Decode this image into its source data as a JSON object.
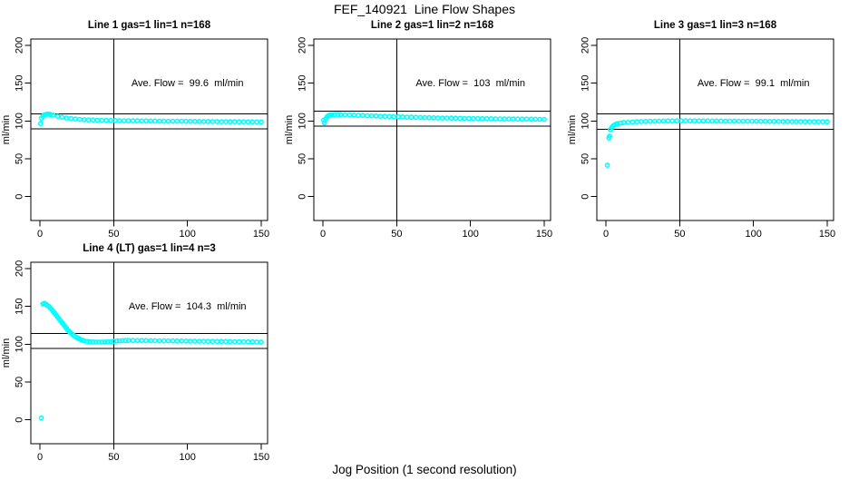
{
  "figure": {
    "title": "FEF_140921  Line Flow Shapes",
    "xlabel": "Jog Position (1 second resolution)"
  },
  "chart_data": [
    {
      "type": "scatter",
      "title": "Line 1 gas=1 lin=1 n=168",
      "ylabel": "ml/min",
      "annotation": "Ave. Flow =  99.6  ml/min",
      "ave_flow": 99.6,
      "n": 168,
      "marker": {
        "shape": "open-circle",
        "color": "#00FFFF"
      },
      "xticks": [
        0,
        50,
        100,
        150
      ],
      "yticks": [
        0,
        50,
        100,
        150,
        200
      ],
      "xlim": [
        -6,
        154
      ],
      "ylim": [
        -32,
        208
      ],
      "vline": 50,
      "hlines": [
        109.6,
        89.6
      ],
      "points": [
        [
          0.5,
          96.5
        ],
        [
          1,
          103.5
        ],
        [
          2,
          106.5
        ],
        [
          3,
          108
        ],
        [
          4,
          108.7
        ],
        [
          5,
          109
        ],
        [
          6,
          108.9
        ],
        [
          7,
          108.5
        ],
        [
          9,
          107.6
        ],
        [
          12,
          106.2
        ],
        [
          15,
          105
        ],
        [
          18,
          104
        ],
        [
          21,
          103.2
        ],
        [
          24,
          102.6
        ],
        [
          27,
          102.1
        ],
        [
          30,
          101.7
        ],
        [
          33,
          101.4
        ],
        [
          36,
          101.2
        ],
        [
          39,
          101
        ],
        [
          42,
          100.8
        ],
        [
          45,
          100.7
        ],
        [
          48,
          100.6
        ],
        [
          51,
          100.5
        ],
        [
          54,
          100.4
        ],
        [
          57,
          100.3
        ],
        [
          60,
          100.2
        ],
        [
          63,
          100.2
        ],
        [
          66,
          100.1
        ],
        [
          69,
          100
        ],
        [
          72,
          100
        ],
        [
          75,
          99.9
        ],
        [
          78,
          99.9
        ],
        [
          81,
          99.8
        ],
        [
          84,
          99.8
        ],
        [
          87,
          99.7
        ],
        [
          90,
          99.7
        ],
        [
          93,
          99.6
        ],
        [
          96,
          99.6
        ],
        [
          99,
          99.5
        ],
        [
          102,
          99.5
        ],
        [
          105,
          99.4
        ],
        [
          108,
          99.4
        ],
        [
          111,
          99.3
        ],
        [
          114,
          99.3
        ],
        [
          117,
          99.2
        ],
        [
          120,
          99.2
        ],
        [
          123,
          99.1
        ],
        [
          126,
          99.1
        ],
        [
          129,
          99
        ],
        [
          132,
          99
        ],
        [
          135,
          98.9
        ],
        [
          138,
          98.9
        ],
        [
          141,
          98.8
        ],
        [
          144,
          98.8
        ],
        [
          147,
          98.7
        ],
        [
          150,
          98.7
        ]
      ]
    },
    {
      "type": "scatter",
      "title": "Line 2 gas=1 lin=2 n=168",
      "ylabel": "ml/min",
      "annotation": "Ave. Flow =  103  ml/min",
      "ave_flow": 103,
      "n": 168,
      "marker": {
        "shape": "open-circle",
        "color": "#00FFFF"
      },
      "xticks": [
        0,
        50,
        100,
        150
      ],
      "yticks": [
        0,
        50,
        100,
        150,
        200
      ],
      "xlim": [
        -6,
        154
      ],
      "ylim": [
        -32,
        208
      ],
      "vline": 50,
      "hlines": [
        113,
        93
      ],
      "points": [
        [
          0.5,
          101
        ],
        [
          1,
          97.5
        ],
        [
          2,
          103
        ],
        [
          3,
          106
        ],
        [
          4,
          107.3
        ],
        [
          5,
          107.8
        ],
        [
          6,
          108.1
        ],
        [
          8,
          108.4
        ],
        [
          10,
          108.5
        ],
        [
          12,
          108.4
        ],
        [
          15,
          108.2
        ],
        [
          18,
          108
        ],
        [
          21,
          107.8
        ],
        [
          24,
          107.5
        ],
        [
          27,
          107.3
        ],
        [
          30,
          107
        ],
        [
          33,
          106.8
        ],
        [
          36,
          106.6
        ],
        [
          39,
          106.3
        ],
        [
          42,
          106.1
        ],
        [
          45,
          105.9
        ],
        [
          48,
          105.7
        ],
        [
          51,
          105.5
        ],
        [
          54,
          105.3
        ],
        [
          57,
          105.1
        ],
        [
          60,
          104.9
        ],
        [
          63,
          104.8
        ],
        [
          66,
          104.6
        ],
        [
          69,
          104.5
        ],
        [
          72,
          104.3
        ],
        [
          75,
          104.2
        ],
        [
          78,
          104
        ],
        [
          81,
          103.9
        ],
        [
          84,
          103.8
        ],
        [
          87,
          103.7
        ],
        [
          90,
          103.6
        ],
        [
          93,
          103.5
        ],
        [
          96,
          103.4
        ],
        [
          99,
          103.3
        ],
        [
          102,
          103.2
        ],
        [
          105,
          103.1
        ],
        [
          108,
          103
        ],
        [
          111,
          103
        ],
        [
          114,
          102.9
        ],
        [
          117,
          102.8
        ],
        [
          120,
          102.7
        ],
        [
          123,
          102.7
        ],
        [
          126,
          102.6
        ],
        [
          129,
          102.5
        ],
        [
          132,
          102.5
        ],
        [
          135,
          102.4
        ],
        [
          138,
          102.4
        ],
        [
          141,
          102.3
        ],
        [
          144,
          102.3
        ],
        [
          147,
          102.2
        ],
        [
          150,
          102.1
        ]
      ]
    },
    {
      "type": "scatter",
      "title": "Line 3 gas=1 lin=3 n=168",
      "ylabel": "ml/min",
      "annotation": "Ave. Flow =  99.1  ml/min",
      "ave_flow": 99.1,
      "n": 168,
      "marker": {
        "shape": "open-circle",
        "color": "#00FFFF"
      },
      "xticks": [
        0,
        50,
        100,
        150
      ],
      "yticks": [
        0,
        50,
        100,
        150,
        200
      ],
      "xlim": [
        -6,
        154
      ],
      "ylim": [
        -32,
        208
      ],
      "vline": 50,
      "hlines": [
        109.1,
        89.1
      ],
      "points": [
        [
          1,
          41.5
        ],
        [
          2,
          77.5
        ],
        [
          2.5,
          80
        ],
        [
          3,
          88.5
        ],
        [
          4,
          91.5
        ],
        [
          5,
          93.5
        ],
        [
          6,
          95
        ],
        [
          7,
          95.8
        ],
        [
          8,
          96.4
        ],
        [
          10,
          97.2
        ],
        [
          12,
          97.7
        ],
        [
          15,
          98.2
        ],
        [
          18,
          98.6
        ],
        [
          21,
          98.9
        ],
        [
          24,
          99.2
        ],
        [
          27,
          99.4
        ],
        [
          30,
          99.6
        ],
        [
          33,
          99.7
        ],
        [
          36,
          99.8
        ],
        [
          39,
          99.9
        ],
        [
          42,
          100
        ],
        [
          45,
          100
        ],
        [
          48,
          100.1
        ],
        [
          51,
          100.1
        ],
        [
          54,
          100.1
        ],
        [
          57,
          100.1
        ],
        [
          60,
          100
        ],
        [
          63,
          100
        ],
        [
          66,
          100
        ],
        [
          69,
          100
        ],
        [
          72,
          99.9
        ],
        [
          75,
          99.9
        ],
        [
          78,
          99.9
        ],
        [
          81,
          99.8
        ],
        [
          84,
          99.8
        ],
        [
          87,
          99.8
        ],
        [
          90,
          99.7
        ],
        [
          93,
          99.7
        ],
        [
          96,
          99.6
        ],
        [
          99,
          99.6
        ],
        [
          102,
          99.6
        ],
        [
          105,
          99.5
        ],
        [
          108,
          99.5
        ],
        [
          111,
          99.4
        ],
        [
          114,
          99.4
        ],
        [
          117,
          99.4
        ],
        [
          120,
          99.3
        ],
        [
          123,
          99.3
        ],
        [
          126,
          99.2
        ],
        [
          129,
          99.2
        ],
        [
          132,
          99.2
        ],
        [
          135,
          99.1
        ],
        [
          138,
          99.1
        ],
        [
          141,
          99
        ],
        [
          144,
          99
        ],
        [
          147,
          99
        ],
        [
          150,
          98.9
        ]
      ]
    },
    {
      "type": "scatter",
      "title": "Line 4 (LT) gas=1 lin=4 n=3",
      "ylabel": "ml/min",
      "annotation": "Ave. Flow =  104.3  ml/min",
      "ave_flow": 104.3,
      "n": 3,
      "marker": {
        "shape": "open-circle",
        "color": "#00FFFF"
      },
      "xticks": [
        0,
        50,
        100,
        150
      ],
      "yticks": [
        0,
        50,
        100,
        150,
        200
      ],
      "xlim": [
        -6,
        154
      ],
      "ylim": [
        -32,
        208
      ],
      "vline": 50,
      "hlines": [
        114.3,
        94.3
      ],
      "points": [
        [
          1,
          2.5
        ],
        [
          2,
          153
        ],
        [
          3,
          154
        ],
        [
          4,
          153
        ],
        [
          5,
          151.5
        ],
        [
          6,
          150
        ],
        [
          7,
          148
        ],
        [
          8,
          146
        ],
        [
          9,
          143.5
        ],
        [
          10,
          141
        ],
        [
          11,
          138.5
        ],
        [
          12,
          136
        ],
        [
          13,
          133.5
        ],
        [
          14,
          131
        ],
        [
          15,
          128.5
        ],
        [
          16,
          126
        ],
        [
          17,
          123.5
        ],
        [
          18,
          121
        ],
        [
          19,
          118.5
        ],
        [
          20,
          116.5
        ],
        [
          21,
          114.5
        ],
        [
          22,
          113
        ],
        [
          23,
          111.5
        ],
        [
          24,
          110
        ],
        [
          25,
          108.8
        ],
        [
          26,
          107.7
        ],
        [
          27,
          106.7
        ],
        [
          28,
          105.8
        ],
        [
          29,
          105
        ],
        [
          30,
          104.4
        ],
        [
          32,
          103.6
        ],
        [
          34,
          103.1
        ],
        [
          36,
          102.9
        ],
        [
          38,
          102.8
        ],
        [
          40,
          102.8
        ],
        [
          42,
          102.8
        ],
        [
          44,
          102.9
        ],
        [
          46,
          103.1
        ],
        [
          48,
          103.4
        ],
        [
          50,
          103.8
        ],
        [
          52,
          104.2
        ],
        [
          54,
          104.5
        ],
        [
          56,
          104.7
        ],
        [
          58,
          104.8
        ],
        [
          60,
          104.9
        ],
        [
          63,
          104.9
        ],
        [
          66,
          104.8
        ],
        [
          69,
          104.8
        ],
        [
          72,
          104.7
        ],
        [
          75,
          104.6
        ],
        [
          78,
          104.6
        ],
        [
          81,
          104.5
        ],
        [
          84,
          104.4
        ],
        [
          87,
          104.4
        ],
        [
          90,
          104.3
        ],
        [
          93,
          104.2
        ],
        [
          96,
          104.2
        ],
        [
          99,
          104.1
        ],
        [
          102,
          104
        ],
        [
          105,
          104
        ],
        [
          108,
          103.9
        ],
        [
          111,
          103.8
        ],
        [
          114,
          103.8
        ],
        [
          117,
          103.7
        ],
        [
          120,
          103.6
        ],
        [
          123,
          103.6
        ],
        [
          126,
          103.5
        ],
        [
          129,
          103.4
        ],
        [
          132,
          103.4
        ],
        [
          135,
          103.3
        ],
        [
          138,
          103.2
        ],
        [
          141,
          103.1
        ],
        [
          144,
          103
        ],
        [
          147,
          102.9
        ],
        [
          150,
          102.8
        ]
      ]
    }
  ]
}
